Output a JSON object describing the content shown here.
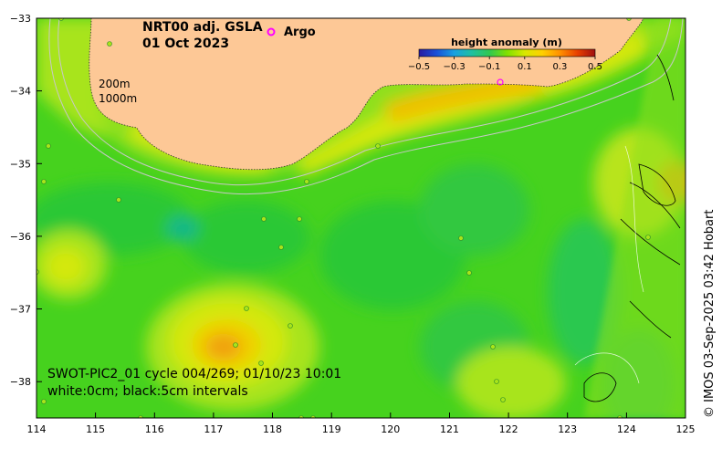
{
  "title": {
    "line1": "NRT00 adj. GSLA",
    "line2": "01 Oct 2023"
  },
  "legend": {
    "argo_marker": "o",
    "argo_label": "Argo",
    "argo_color": "#ff00ff"
  },
  "isobath_labels": [
    "200m",
    "1000m"
  ],
  "colorbar": {
    "title": "height anomaly (m)",
    "ticks": [
      "−0.5",
      "−0.3",
      "−0.1",
      "0.1",
      "0.3",
      "0.5"
    ],
    "range": [
      -0.5,
      0.5
    ],
    "colors": [
      "#2a1aa0",
      "#1a50d8",
      "#1aa0e0",
      "#20c0a0",
      "#30c850",
      "#80e000",
      "#d8e800",
      "#ffd000",
      "#ff9000",
      "#e84000",
      "#a01010"
    ]
  },
  "axes": {
    "x_ticks": [
      "114",
      "115",
      "116",
      "117",
      "118",
      "119",
      "120",
      "121",
      "122",
      "123",
      "124",
      "125"
    ],
    "y_ticks": [
      "−33",
      "−34",
      "−35",
      "−36",
      "−37",
      "−38"
    ],
    "lon_range": [
      114,
      125
    ],
    "lat_range": [
      -38.5,
      -33
    ]
  },
  "swot": {
    "line1": "SWOT-PIC2_01 cycle 004/269; 01/10/23 10:01",
    "line2": "white:0cm; black:5cm intervals"
  },
  "copyright": "© IMOS 03-Sep-2025 03:42 Hobart",
  "colors": {
    "land": "#fdc896",
    "ocean_base": "#46d21e"
  }
}
